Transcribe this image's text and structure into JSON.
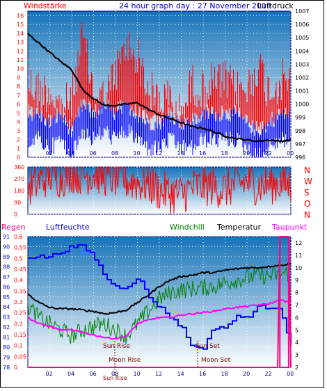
{
  "colors": {
    "plot_bg_top": "#1673b8",
    "plot_bg_bottom": "#ffffff",
    "grid": "#ffffff",
    "frame": "#000080",
    "wind": "#ff0000",
    "wind_avg": "#0000ff",
    "pressure": "#000000",
    "humidity": "#0000ff",
    "temperature": "#000000",
    "windchill": "#008000",
    "dewpoint": "#ff00ff",
    "rain": "#ff0080",
    "labels_red": "#ff0000",
    "labels_blue": "#0000cc",
    "labels_dark": "#800000"
  },
  "header": {
    "left": "Windstärke",
    "center": "24 hour graph day : 27 November 2019",
    "right": "Luftdruck"
  },
  "panel2_side_labels": [
    "N",
    "W",
    "S",
    "O",
    "N"
  ],
  "panel3_headers": {
    "rain": "Regen",
    "humidity": "Luftfeuchte",
    "windchill": "Windchill",
    "temperature": "Temperatur",
    "dewpoint": "Taupunkt"
  },
  "annotations": {
    "sun_rise": "Sun Rise",
    "sun_set": "Sun Set",
    "moon_rise": "Moon Rise",
    "moon_set": "Moon Set",
    "bottom_left": "Sun Rise"
  },
  "chart_data": [
    {
      "type": "line",
      "title": "24 hour graph day : 27 November 2019",
      "x_ticks": [
        "02",
        "04",
        "06",
        "08",
        "10",
        "12",
        "14",
        "16",
        "18",
        "20",
        "22",
        "00"
      ],
      "y_left": {
        "label": "Windstärke",
        "ticks": [
          0,
          1,
          2,
          3,
          4,
          5,
          6,
          7,
          8,
          9,
          10,
          11,
          12,
          13,
          14,
          15,
          16
        ],
        "range": [
          0,
          16.5
        ]
      },
      "y_right": {
        "label": "Luftdruck",
        "ticks": [
          996,
          997,
          998,
          999,
          1000,
          1001,
          1002,
          1003,
          1004,
          1005,
          1006,
          1007
        ],
        "range": [
          996,
          1007
        ]
      },
      "series": [
        {
          "name": "Luftdruck",
          "axis": "right",
          "x_hours": [
            0,
            1,
            2,
            3,
            4,
            5,
            6,
            7,
            8,
            9,
            10,
            11,
            12,
            13,
            14,
            15,
            16,
            17,
            18,
            19,
            20,
            21,
            22,
            23,
            24
          ],
          "values": [
            1005.3,
            1004.6,
            1003.9,
            1003.2,
            1002.6,
            1001.1,
            1000.4,
            999.9,
            999.9,
            1000.0,
            1000.1,
            999.6,
            999.2,
            998.9,
            998.6,
            998.3,
            998.2,
            997.9,
            997.6,
            997.4,
            997.3,
            997.2,
            997.3,
            997.2,
            997.3
          ]
        },
        {
          "name": "Windstärke (Böen)",
          "axis": "left",
          "x_hours": [
            0,
            1,
            2,
            3,
            4,
            5,
            6,
            7,
            8,
            9,
            10,
            11,
            12,
            13,
            14,
            15,
            16,
            17,
            18,
            19,
            20,
            21,
            22,
            23,
            24
          ],
          "values": [
            11,
            10,
            10,
            8,
            9,
            16,
            10,
            9,
            12,
            15,
            14,
            10,
            9,
            9,
            7,
            11,
            10,
            11,
            11,
            10,
            10,
            13,
            10,
            11,
            12
          ]
        },
        {
          "name": "Windstärke (Mittel)",
          "axis": "left",
          "x_hours": [
            0,
            1,
            2,
            3,
            4,
            5,
            6,
            7,
            8,
            9,
            10,
            11,
            12,
            13,
            14,
            15,
            16,
            17,
            18,
            19,
            20,
            21,
            22,
            23,
            24
          ],
          "values": [
            4,
            4,
            3,
            4,
            2,
            5,
            4,
            5,
            4,
            5,
            4,
            3,
            3,
            4,
            3,
            3,
            4,
            4,
            4,
            4,
            3,
            2,
            3,
            4,
            4
          ]
        }
      ]
    },
    {
      "type": "line",
      "title": "",
      "x_ticks": [
        "02",
        "04",
        "06",
        "08",
        "10",
        "12",
        "14",
        "16",
        "18",
        "20",
        "22",
        "00"
      ],
      "y_left": {
        "label": "",
        "ticks": [
          0,
          90,
          180,
          270,
          360
        ],
        "range": [
          0,
          360
        ]
      },
      "series": [
        {
          "name": "Windrichtung",
          "x_hours": [
            0,
            1,
            2,
            3,
            4,
            5,
            6,
            7,
            8,
            9,
            10,
            11,
            12,
            13,
            14,
            15,
            16,
            17,
            18,
            19,
            20,
            21,
            22,
            23,
            24
          ],
          "values": [
            200,
            250,
            300,
            280,
            320,
            300,
            310,
            290,
            280,
            260,
            240,
            230,
            180,
            160,
            150,
            200,
            220,
            210,
            190,
            230,
            250,
            220,
            230,
            240,
            220
          ]
        }
      ]
    },
    {
      "type": "line",
      "title": "",
      "x_ticks": [
        "02",
        "04",
        "06",
        "08",
        "10",
        "12",
        "14",
        "16",
        "18",
        "20",
        "22",
        "00"
      ],
      "y_rain": {
        "label": "Regen",
        "ticks": [
          0,
          0.05,
          0.1,
          0.15,
          0.2,
          0.25,
          0.3,
          0.35,
          0.4,
          0.45,
          0.5,
          0.55,
          0.6
        ],
        "range": [
          0,
          0.6
        ]
      },
      "y_humidity": {
        "label": "Luftfeuchte",
        "ticks": [
          78,
          79,
          80,
          81,
          82,
          83,
          84,
          85,
          86,
          87,
          88,
          89,
          90,
          91
        ],
        "range": [
          78,
          91
        ]
      },
      "y_temp": {
        "label": "Temperatur",
        "ticks": [
          2,
          3,
          4,
          5,
          6,
          7,
          8,
          9,
          10,
          11,
          12
        ],
        "range": [
          2,
          12.5
        ]
      },
      "series": [
        {
          "name": "Luftfeuchte",
          "axis": "humidity",
          "x_hours": [
            0,
            1,
            2,
            3,
            4,
            5,
            6,
            7,
            8,
            9,
            10,
            11,
            12,
            13,
            14,
            15,
            16,
            17,
            18,
            19,
            20,
            21,
            22,
            23,
            24
          ],
          "values": [
            89,
            89,
            89,
            89.5,
            90,
            90,
            89,
            87,
            86,
            86,
            87,
            85,
            84,
            83,
            82,
            80,
            80,
            82,
            82,
            83,
            83,
            84,
            84,
            84,
            80
          ]
        },
        {
          "name": "Temperatur",
          "axis": "temp",
          "x_hours": [
            0,
            1,
            2,
            3,
            4,
            5,
            6,
            7,
            8,
            9,
            10,
            11,
            12,
            13,
            14,
            15,
            16,
            17,
            18,
            19,
            20,
            21,
            22,
            23,
            24
          ],
          "values": [
            7.9,
            7.2,
            6.8,
            6.7,
            6.7,
            6.6,
            6.5,
            6.3,
            6.4,
            6.6,
            7.2,
            7.8,
            8.5,
            9.0,
            9.3,
            9.4,
            9.6,
            9.6,
            9.8,
            9.9,
            10.0,
            10.0,
            10.1,
            10.2,
            10.3
          ]
        },
        {
          "name": "Windchill",
          "axis": "temp",
          "x_hours": [
            0,
            1,
            2,
            3,
            4,
            5,
            6,
            7,
            8,
            9,
            10,
            11,
            12,
            13,
            14,
            15,
            16,
            17,
            18,
            19,
            20,
            21,
            22,
            23,
            24
          ],
          "values": [
            7.0,
            6.0,
            5.5,
            5.0,
            4.5,
            5.0,
            5.3,
            5.5,
            5.0,
            4.5,
            5.5,
            6.5,
            7.5,
            8.0,
            8.2,
            8.3,
            8.4,
            8.5,
            8.8,
            9.0,
            9.2,
            9.4,
            9.3,
            9.5,
            9.6
          ]
        },
        {
          "name": "Taupunkt",
          "axis": "temp",
          "x_hours": [
            0,
            1,
            2,
            3,
            4,
            5,
            6,
            7,
            8,
            9,
            10,
            11,
            12,
            13,
            14,
            15,
            16,
            17,
            18,
            19,
            20,
            21,
            22,
            23,
            24
          ],
          "values": [
            6.0,
            5.5,
            5.3,
            5.0,
            5.0,
            4.8,
            4.6,
            4.4,
            4.3,
            4.5,
            5.5,
            5.8,
            6.0,
            6.0,
            6.2,
            6.3,
            6.4,
            6.5,
            6.7,
            6.8,
            6.9,
            7.0,
            7.1,
            7.4,
            7.2
          ]
        },
        {
          "name": "Regen",
          "axis": "rain",
          "x_hours": [
            0,
            2,
            4,
            6,
            8,
            10,
            12,
            14,
            16,
            18,
            20,
            22,
            22.8,
            23.0,
            23.8,
            24
          ],
          "values": [
            0,
            0,
            0,
            0,
            0,
            0,
            0,
            0,
            0,
            0,
            0,
            0,
            0,
            0.6,
            0.6,
            0
          ]
        }
      ]
    }
  ]
}
